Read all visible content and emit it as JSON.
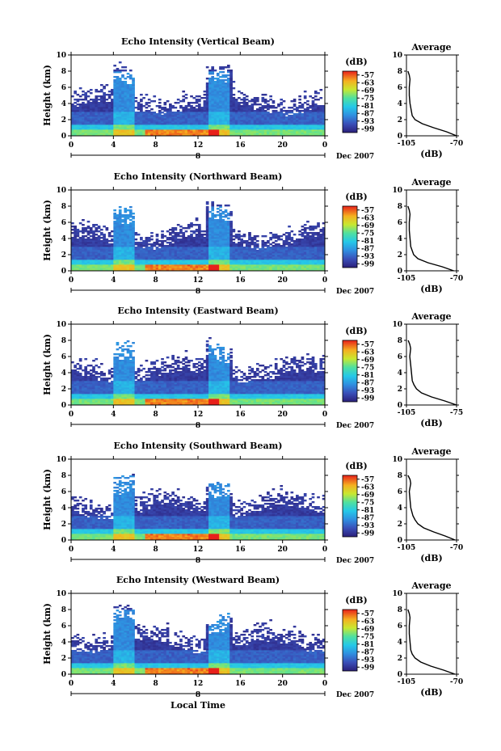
{
  "chart_data": [
    {
      "type": "heatmap",
      "title": "Echo Intensity (Vertical Beam)",
      "ylabel": "Height (km)",
      "xticks": [
        "0",
        "4",
        "8",
        "12",
        "16",
        "20",
        "0"
      ],
      "yticks": [
        "0",
        "2",
        "4",
        "6",
        "8",
        "10"
      ],
      "xlim": [
        0,
        24
      ],
      "ylim": [
        0,
        10
      ],
      "date_marker": "8",
      "date_label": "Dec 2007",
      "colorbar": {
        "unit": "(dB)",
        "ticks": [
          "-57",
          "-63",
          "-69",
          "-75",
          "-81",
          "-87",
          "-93",
          "-99"
        ],
        "range": [
          -99,
          -57
        ]
      },
      "profile": {
        "title": "Average",
        "xlabel": "(dB)",
        "xticks": [
          "-105",
          "-70"
        ],
        "xlim": [
          -105,
          -70
        ],
        "points": [
          [
            -70,
            0
          ],
          [
            -77,
            0.5
          ],
          [
            -86,
            1
          ],
          [
            -94,
            1.5
          ],
          [
            -99,
            2
          ],
          [
            -101,
            2.5
          ],
          [
            -101.5,
            3
          ],
          [
            -102,
            3.5
          ],
          [
            -102.5,
            4
          ],
          [
            -103,
            5
          ],
          [
            -103,
            6
          ],
          [
            -102.5,
            7
          ],
          [
            -103,
            7.5
          ],
          [
            -104,
            8
          ]
        ]
      },
      "features": {
        "cloud_top": 4,
        "bright_band": [
          7,
          14
        ]
      }
    },
    {
      "type": "heatmap",
      "title": "Echo Intensity (Northward Beam)",
      "ylabel": "Height (km)",
      "xticks": [
        "0",
        "4",
        "8",
        "12",
        "16",
        "20",
        "0"
      ],
      "yticks": [
        "0",
        "2",
        "4",
        "6",
        "8",
        "10"
      ],
      "xlim": [
        0,
        24
      ],
      "ylim": [
        0,
        10
      ],
      "date_marker": "8",
      "date_label": "Dec 2007",
      "colorbar": {
        "unit": "(dB)",
        "ticks": [
          "-57",
          "-63",
          "-69",
          "-75",
          "-81",
          "-87",
          "-93",
          "-99"
        ],
        "range": [
          -99,
          -57
        ]
      },
      "profile": {
        "title": "Average",
        "xlabel": "(dB)",
        "xticks": [
          "-105",
          "-70"
        ],
        "xlim": [
          -105,
          -70
        ],
        "points": [
          [
            -72,
            0
          ],
          [
            -80,
            0.5
          ],
          [
            -90,
            1
          ],
          [
            -97,
            1.5
          ],
          [
            -100,
            2
          ],
          [
            -101,
            2.5
          ],
          [
            -102,
            3
          ],
          [
            -102.5,
            4
          ],
          [
            -103,
            5
          ],
          [
            -103,
            6
          ],
          [
            -102.5,
            7
          ],
          [
            -103,
            7.5
          ],
          [
            -104,
            8
          ]
        ]
      },
      "features": {
        "cloud_top": 4,
        "bright_band": [
          7,
          14
        ]
      }
    },
    {
      "type": "heatmap",
      "title": "Echo Intensity (Eastward Beam)",
      "ylabel": "Height (km)",
      "xticks": [
        "0",
        "4",
        "8",
        "12",
        "16",
        "20",
        "0"
      ],
      "yticks": [
        "0",
        "2",
        "4",
        "6",
        "8",
        "10"
      ],
      "xlim": [
        0,
        24
      ],
      "ylim": [
        0,
        10
      ],
      "date_marker": "8",
      "date_label": "Dec 2007",
      "colorbar": {
        "unit": "(dB)",
        "ticks": [
          "-57",
          "-63",
          "-69",
          "-75",
          "-81",
          "-87",
          "-93",
          "-99"
        ],
        "range": [
          -99,
          -57
        ]
      },
      "profile": {
        "title": "Average",
        "xlabel": "(dB)",
        "xticks": [
          "-105",
          "-75"
        ],
        "xlim": [
          -105,
          -75
        ],
        "points": [
          [
            -75,
            0
          ],
          [
            -82,
            0.5
          ],
          [
            -90,
            1
          ],
          [
            -96,
            1.5
          ],
          [
            -99,
            2
          ],
          [
            -100.5,
            2.5
          ],
          [
            -101.5,
            3
          ],
          [
            -102,
            4
          ],
          [
            -102.5,
            5
          ],
          [
            -103,
            6
          ],
          [
            -102.5,
            7
          ],
          [
            -103,
            7.5
          ],
          [
            -104,
            8
          ]
        ]
      },
      "features": {
        "cloud_top": 4,
        "bright_band": [
          7,
          14
        ]
      }
    },
    {
      "type": "heatmap",
      "title": "Echo Intensity (Southward Beam)",
      "ylabel": "Height (km)",
      "xticks": [
        "0",
        "4",
        "8",
        "12",
        "16",
        "20",
        "0"
      ],
      "yticks": [
        "0",
        "2",
        "4",
        "6",
        "8",
        "10"
      ],
      "xlim": [
        0,
        24
      ],
      "ylim": [
        0,
        10
      ],
      "date_marker": "8",
      "date_label": "Dec 2007",
      "colorbar": {
        "unit": "(dB)",
        "ticks": [
          "-57",
          "-63",
          "-69",
          "-75",
          "-81",
          "-87",
          "-93",
          "-99"
        ],
        "range": [
          -99,
          -57
        ]
      },
      "profile": {
        "title": "Average",
        "xlabel": "(dB)",
        "xticks": [
          "-105",
          "-70"
        ],
        "xlim": [
          -105,
          -70
        ],
        "points": [
          [
            -71,
            0
          ],
          [
            -78,
            0.5
          ],
          [
            -86,
            1
          ],
          [
            -93,
            1.5
          ],
          [
            -97,
            2
          ],
          [
            -99,
            2.5
          ],
          [
            -100.5,
            3
          ],
          [
            -102,
            4
          ],
          [
            -102.5,
            5
          ],
          [
            -103,
            6
          ],
          [
            -102,
            7
          ],
          [
            -102.5,
            7.5
          ],
          [
            -104,
            8
          ]
        ]
      },
      "features": {
        "cloud_top": 4,
        "bright_band": [
          7,
          14
        ]
      }
    },
    {
      "type": "heatmap",
      "title": "Echo Intensity (Westward Beam)",
      "ylabel": "Height (km)",
      "xlabel": "Local Time",
      "xticks": [
        "0",
        "4",
        "8",
        "12",
        "16",
        "20",
        "0"
      ],
      "yticks": [
        "0",
        "2",
        "4",
        "6",
        "8",
        "10"
      ],
      "xlim": [
        0,
        24
      ],
      "ylim": [
        0,
        10
      ],
      "date_marker": "8",
      "date_label": "Dec 2007",
      "colorbar": {
        "unit": "(dB)",
        "ticks": [
          "-57",
          "-63",
          "-69",
          "-75",
          "-81",
          "-87",
          "-93",
          "-99"
        ],
        "range": [
          -99,
          -57
        ]
      },
      "profile": {
        "title": "Average",
        "xlabel": "(dB)",
        "xticks": [
          "-105",
          "-70"
        ],
        "xlim": [
          -105,
          -70
        ],
        "points": [
          [
            -71,
            0
          ],
          [
            -79,
            0.5
          ],
          [
            -88,
            1
          ],
          [
            -95,
            1.5
          ],
          [
            -99,
            2
          ],
          [
            -101,
            2.5
          ],
          [
            -102,
            3
          ],
          [
            -102.5,
            4
          ],
          [
            -103,
            5
          ],
          [
            -103,
            6
          ],
          [
            -102.5,
            7
          ],
          [
            -103,
            7.5
          ],
          [
            -104,
            8
          ]
        ]
      },
      "features": {
        "cloud_top": 4,
        "bright_band": [
          7,
          14
        ]
      }
    }
  ]
}
